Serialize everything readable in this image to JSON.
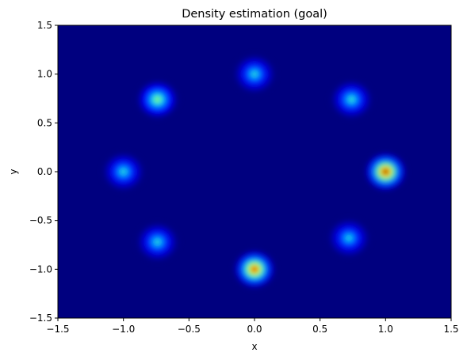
{
  "chart_data": {
    "type": "heatmap",
    "title": "Density estimation (goal)",
    "xlabel": "x",
    "ylabel": "y",
    "xlim": [
      -1.5,
      1.5
    ],
    "ylim": [
      -1.5,
      1.5
    ],
    "xticks": [
      "−1.5",
      "−1.0",
      "−0.5",
      "0.0",
      "0.5",
      "1.0",
      "1.5"
    ],
    "yticks": [
      "−1.5",
      "−1.0",
      "−0.5",
      "0.0",
      "0.5",
      "1.0",
      "1.5"
    ],
    "colormap": "jet",
    "grid": false,
    "modes": [
      {
        "x": 1.0,
        "y": 0.0,
        "peak": 1.0
      },
      {
        "x": 0.74,
        "y": 0.74,
        "peak": 0.42
      },
      {
        "x": 0.0,
        "y": 1.0,
        "peak": 0.4
      },
      {
        "x": -0.74,
        "y": 0.74,
        "peak": 0.55
      },
      {
        "x": -1.0,
        "y": 0.0,
        "peak": 0.4
      },
      {
        "x": -0.74,
        "y": -0.72,
        "peak": 0.4
      },
      {
        "x": 0.0,
        "y": -1.0,
        "peak": 0.92
      },
      {
        "x": 0.72,
        "y": -0.68,
        "peak": 0.38
      }
    ]
  }
}
